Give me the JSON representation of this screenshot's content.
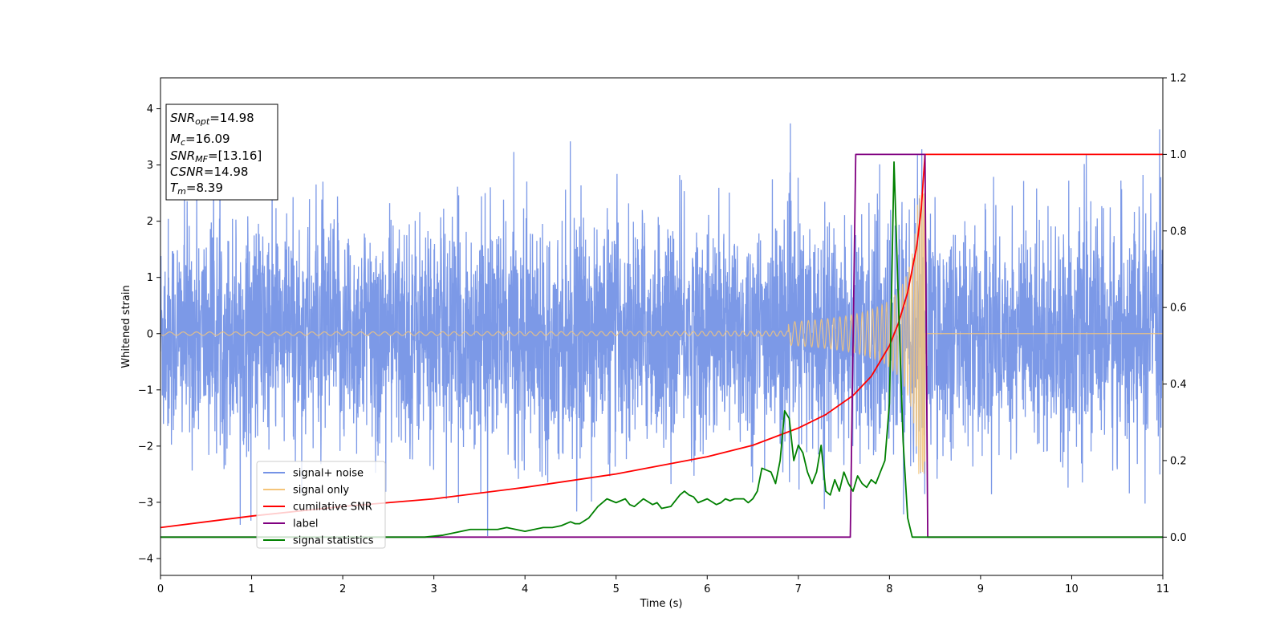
{
  "chart_data": {
    "type": "line",
    "xlabel": "Time (s)",
    "ylabel": "Whitened strain",
    "xlim": [
      0,
      11
    ],
    "ylim": [
      -4.3,
      4.55
    ],
    "y2lim": [
      -0.1,
      1.2
    ],
    "xticks": [
      "0",
      "1",
      "2",
      "3",
      "4",
      "5",
      "6",
      "7",
      "8",
      "9",
      "10",
      "11"
    ],
    "yticks": [
      "4",
      "3",
      "2",
      "1",
      "0",
      "−1",
      "−2",
      "−3",
      "−4"
    ],
    "yticks_values": [
      4,
      3,
      2,
      1,
      0,
      -1,
      -2,
      -3,
      -4
    ],
    "y2ticks": [
      "1.2",
      "1.0",
      "0.8",
      "0.6",
      "0.4",
      "0.2",
      "0.0"
    ],
    "y2ticks_values": [
      1.2,
      1.0,
      0.8,
      0.6,
      0.4,
      0.2,
      0.0
    ],
    "grid": false,
    "legend_position": "lower-left",
    "info_box": {
      "lines": [
        {
          "main": "SNR",
          "sub": "opt",
          "rest": "=14.98"
        },
        {
          "main": "M",
          "sub": "c",
          "rest": "=16.09"
        },
        {
          "main": "SNR",
          "sub": "MF",
          "rest": "=[13.16]"
        },
        {
          "main": "CSNR",
          "sub": "",
          "rest": "=14.98"
        },
        {
          "main": "T",
          "sub": "m",
          "rest": "=8.39"
        }
      ]
    },
    "series": [
      {
        "name": "signal+ noise",
        "color": "#7593e6",
        "axis": "left",
        "description_values": {
          "noise_std": 1.0,
          "peak_max": 4.17,
          "peak_min": -3.6
        }
      },
      {
        "name": "signal only",
        "color": "#f5c57a",
        "axis": "left",
        "chirp": {
          "start_amplitude": 0.03,
          "peak_amplitude": 2.5,
          "merger_time": 8.39
        }
      },
      {
        "name": "cumilative SNR",
        "color": "#ff0000",
        "axis": "right",
        "x": [
          0,
          1,
          2,
          3,
          4,
          5,
          6,
          6.5,
          7,
          7.3,
          7.6,
          7.8,
          8.0,
          8.1,
          8.2,
          8.3,
          8.35,
          8.39,
          8.4,
          11
        ],
        "y": [
          0.025,
          0.055,
          0.08,
          0.1,
          0.13,
          0.165,
          0.21,
          0.24,
          0.285,
          0.32,
          0.37,
          0.42,
          0.5,
          0.56,
          0.64,
          0.76,
          0.86,
          1.0,
          1.0,
          1.0
        ]
      },
      {
        "name": "label",
        "color": "#800080",
        "axis": "right",
        "x": [
          0,
          7.57,
          7.63,
          8.39,
          8.42,
          11
        ],
        "y": [
          0,
          0,
          1.0,
          1.0,
          0,
          0
        ]
      },
      {
        "name": "signal statistics",
        "color": "#008000",
        "axis": "right",
        "x": [
          0,
          0.5,
          1,
          1.5,
          2,
          2.5,
          2.9,
          3.1,
          3.3,
          3.4,
          3.5,
          3.6,
          3.7,
          3.8,
          3.9,
          4.0,
          4.1,
          4.2,
          4.3,
          4.4,
          4.5,
          4.55,
          4.6,
          4.7,
          4.75,
          4.8,
          4.9,
          4.95,
          5.0,
          5.05,
          5.1,
          5.15,
          5.2,
          5.3,
          5.4,
          5.45,
          5.5,
          5.6,
          5.7,
          5.75,
          5.8,
          5.85,
          5.9,
          5.95,
          6.0,
          6.1,
          6.15,
          6.2,
          6.25,
          6.3,
          6.4,
          6.45,
          6.5,
          6.55,
          6.6,
          6.7,
          6.75,
          6.8,
          6.85,
          6.9,
          6.95,
          7.0,
          7.05,
          7.1,
          7.15,
          7.2,
          7.25,
          7.3,
          7.35,
          7.4,
          7.45,
          7.5,
          7.55,
          7.6,
          7.65,
          7.7,
          7.75,
          7.8,
          7.85,
          7.9,
          7.95,
          8.0,
          8.05,
          8.1,
          8.15,
          8.2,
          8.25,
          8.3,
          8.35,
          8.4,
          8.45,
          8.5,
          9,
          10,
          11
        ],
        "y": [
          0,
          0,
          0,
          0,
          0,
          0,
          0,
          0.005,
          0.015,
          0.02,
          0.02,
          0.02,
          0.02,
          0.025,
          0.02,
          0.015,
          0.02,
          0.025,
          0.025,
          0.03,
          0.04,
          0.035,
          0.035,
          0.05,
          0.065,
          0.08,
          0.1,
          0.095,
          0.09,
          0.095,
          0.1,
          0.085,
          0.08,
          0.1,
          0.085,
          0.09,
          0.075,
          0.08,
          0.11,
          0.12,
          0.11,
          0.105,
          0.09,
          0.095,
          0.1,
          0.085,
          0.09,
          0.1,
          0.095,
          0.1,
          0.1,
          0.09,
          0.1,
          0.12,
          0.18,
          0.17,
          0.14,
          0.2,
          0.33,
          0.31,
          0.2,
          0.24,
          0.22,
          0.17,
          0.14,
          0.17,
          0.24,
          0.12,
          0.11,
          0.15,
          0.12,
          0.17,
          0.14,
          0.12,
          0.16,
          0.14,
          0.13,
          0.15,
          0.14,
          0.17,
          0.2,
          0.35,
          0.98,
          0.6,
          0.25,
          0.05,
          0.0,
          0.0,
          0.0,
          0.0,
          0.0,
          0.0,
          0.0,
          0.0,
          0.0
        ]
      }
    ]
  }
}
